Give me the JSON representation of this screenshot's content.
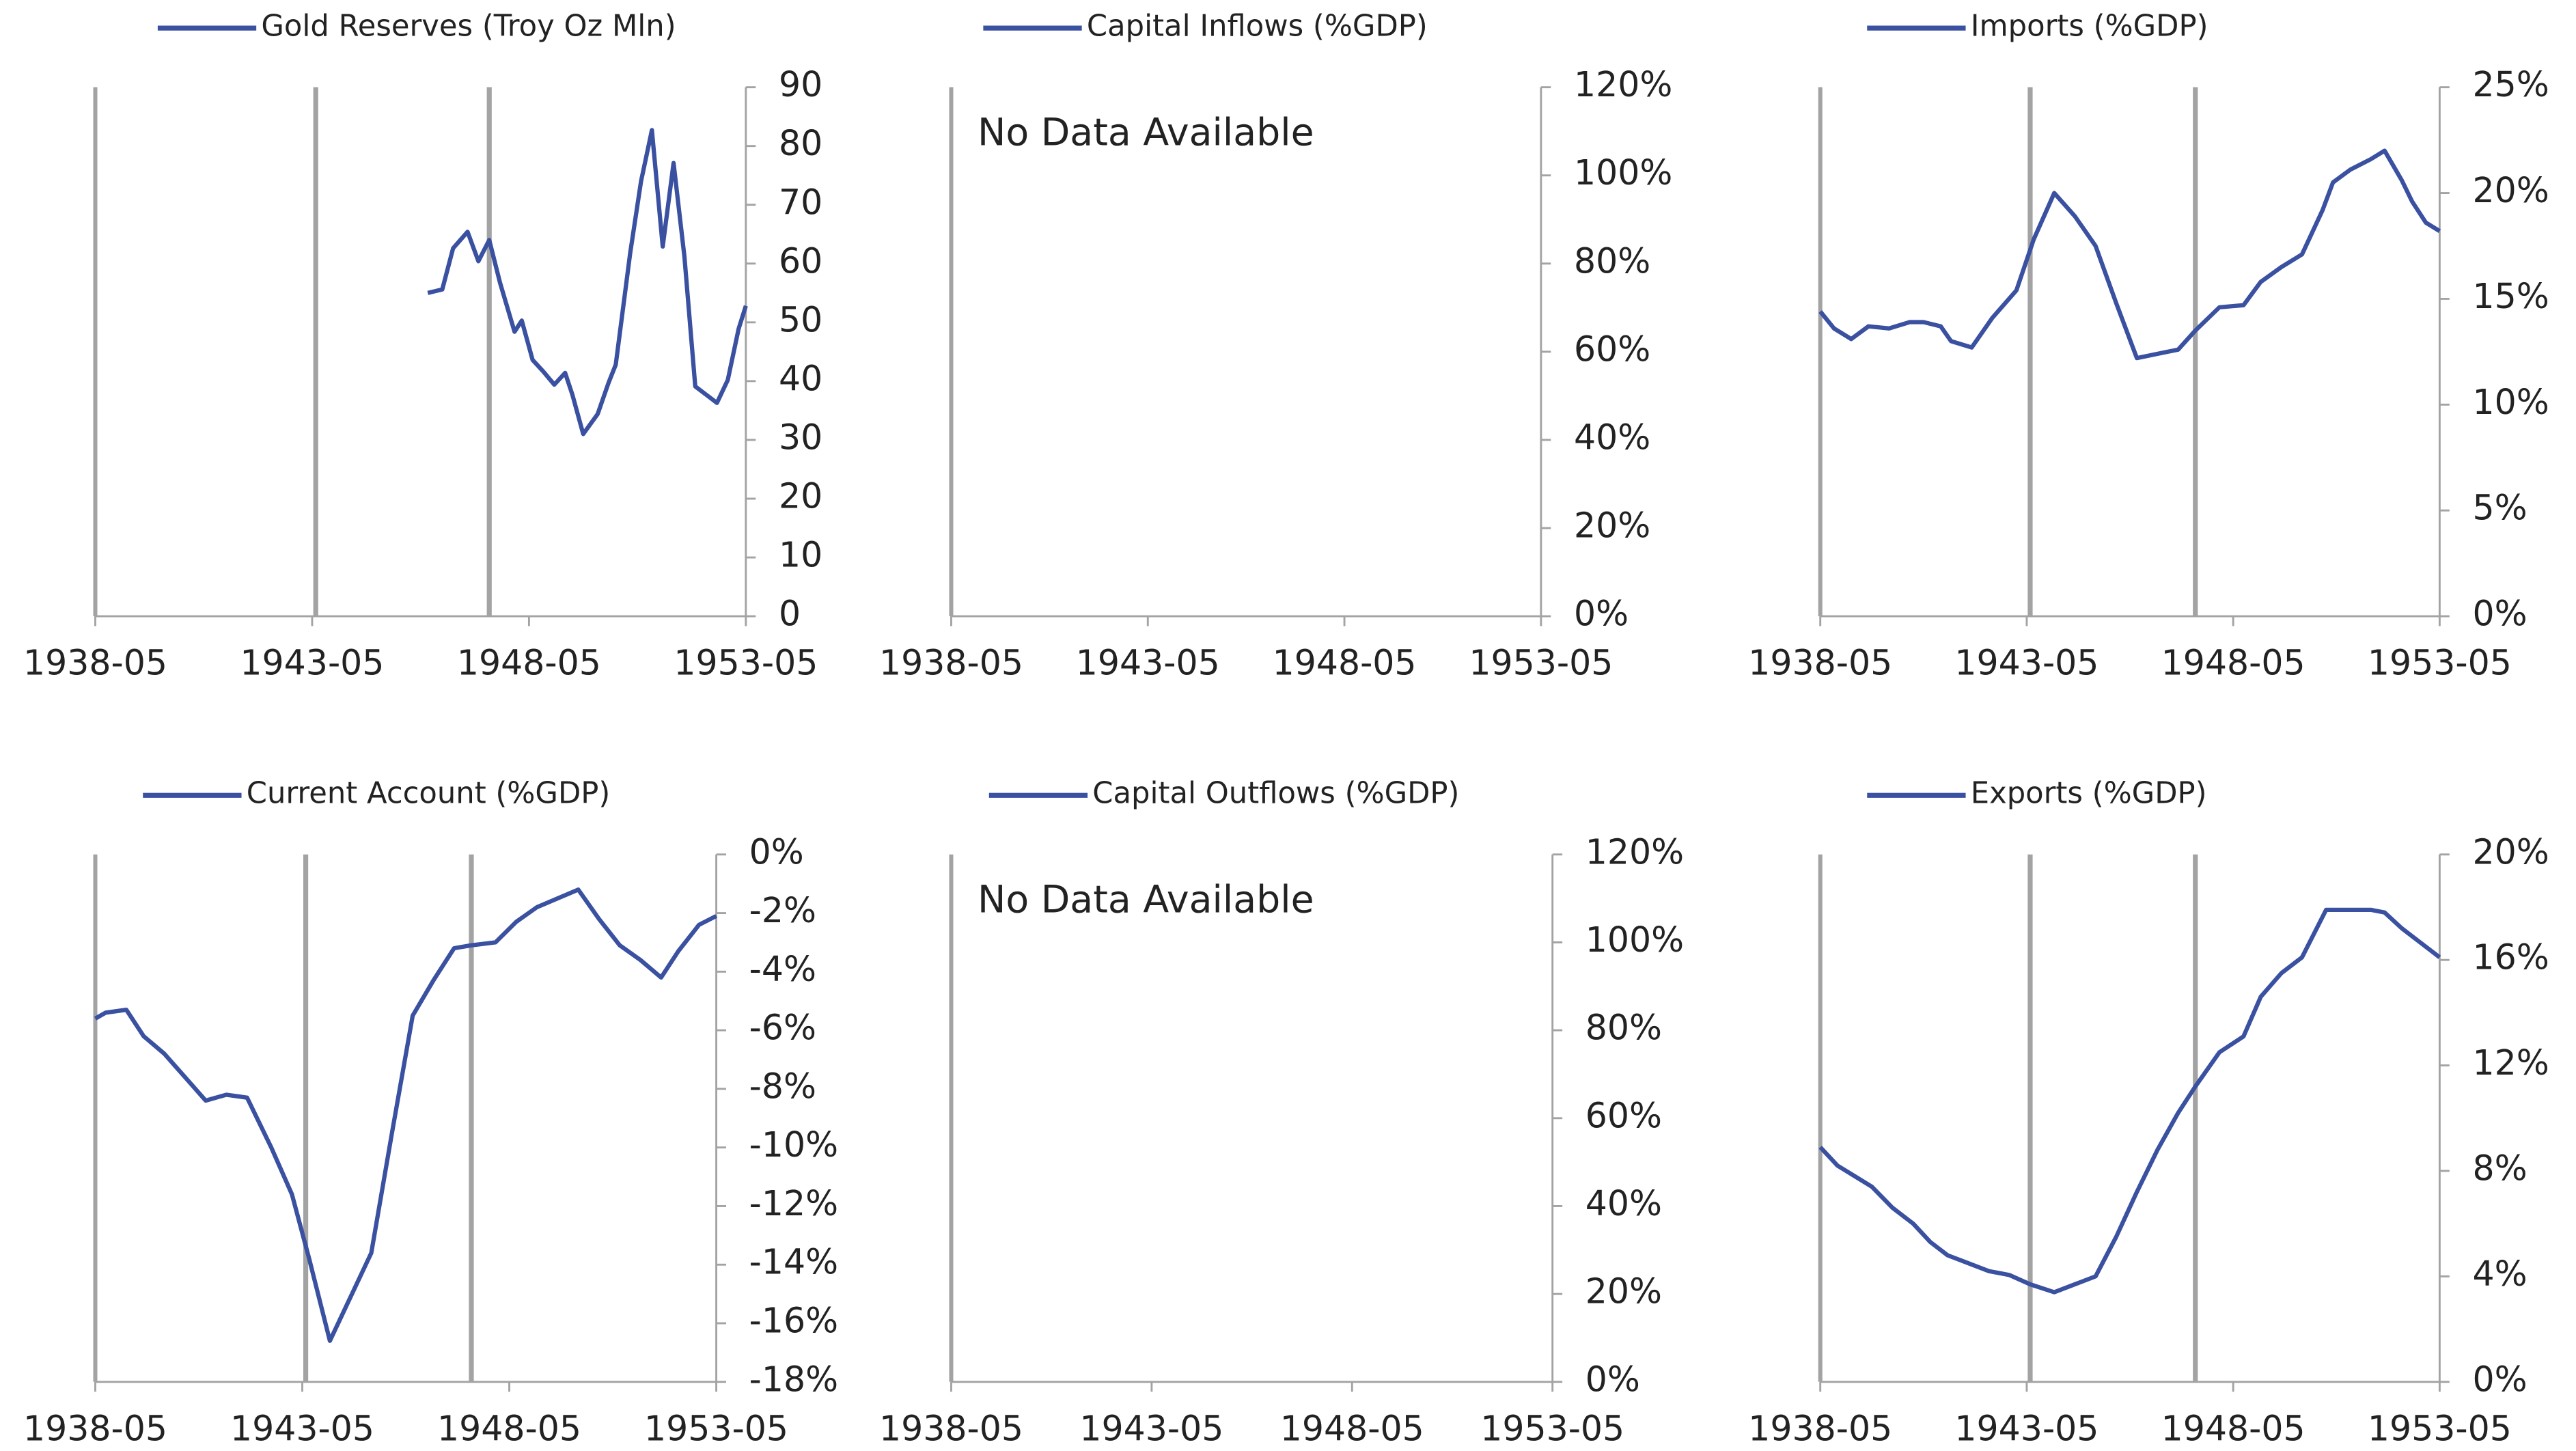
{
  "chart_data": [
    {
      "type": "line",
      "x": [
        "1946-01",
        "1946-05",
        "1946-08",
        "1946-12",
        "1947-03",
        "1947-06",
        "1947-09",
        "1948-01",
        "1948-03",
        "1948-06",
        "1948-09",
        "1948-12",
        "1949-03",
        "1949-05",
        "1949-08",
        "1949-12",
        "1950-03",
        "1950-05",
        "1950-09",
        "1950-12",
        "1951-03",
        "1951-06",
        "1951-09",
        "1951-12",
        "1952-03",
        "1952-06",
        "1952-09",
        "1952-12",
        "1953-03",
        "1953-05"
      ],
      "series": [
        {
          "name": "Gold Reserves (Troy Oz Mln)",
          "color": "#3a50a0",
          "values": [
            55,
            55.6,
            62.6,
            65.4,
            60.4,
            64,
            56.7,
            48.4,
            50.3,
            43.6,
            41.6,
            39.4,
            41.4,
            37.7,
            31,
            34.4,
            39.7,
            42.8,
            61.8,
            74,
            82.7,
            62.9,
            77.1,
            61.2,
            39.1,
            37.7,
            36.3,
            40.2,
            48.9,
            52.8
          ]
        }
      ],
      "xlim": [
        "1938-05",
        "1953-05"
      ],
      "xticks": [
        "1938-05",
        "1943-05",
        "1948-05",
        "1953-05"
      ],
      "ylim": [
        0,
        90
      ],
      "yticks": [
        0,
        10,
        20,
        30,
        40,
        50,
        60,
        70,
        80,
        90
      ],
      "markers": [
        "1943-06",
        "1947-06"
      ]
    },
    {
      "type": "line",
      "x": [],
      "series": [
        {
          "name": "Capital Inflows (%GDP)",
          "color": "#3a50a0",
          "values": []
        }
      ],
      "annotation": "No Data Available",
      "xlim": [
        "1938-05",
        "1953-05"
      ],
      "xticks": [
        "1938-05",
        "1943-05",
        "1948-05",
        "1953-05"
      ],
      "ylim": [
        0,
        120
      ],
      "yticks": [
        {
          "value": 0,
          "label": "0%"
        },
        {
          "value": 20,
          "label": "20%"
        },
        {
          "value": 40,
          "label": "40%"
        },
        {
          "value": 60,
          "label": "60%"
        },
        {
          "value": 80,
          "label": "80%"
        },
        {
          "value": 100,
          "label": "100%"
        },
        {
          "value": 120,
          "label": "120%"
        }
      ],
      "markers": []
    },
    {
      "type": "line",
      "x": [
        "1938-05",
        "1938-09",
        "1939-02",
        "1939-07",
        "1940-01",
        "1940-07",
        "1940-11",
        "1941-04",
        "1941-07",
        "1942-01",
        "1942-07",
        "1943-02",
        "1943-07",
        "1944-01",
        "1944-07",
        "1945-01",
        "1945-07",
        "1946-01",
        "1946-07",
        "1947-01",
        "1947-06",
        "1948-01",
        "1948-08",
        "1949-01",
        "1949-07",
        "1950-01",
        "1950-07",
        "1950-10",
        "1951-03",
        "1951-09",
        "1952-01",
        "1952-06",
        "1952-09",
        "1953-01",
        "1953-05"
      ],
      "series": [
        {
          "name": "Imports (%GDP)",
          "color": "#3a50a0",
          "values": [
            14.4,
            13.6,
            13.1,
            13.7,
            13.6,
            13.9,
            13.9,
            13.7,
            13,
            12.7,
            14.1,
            15.4,
            17.8,
            20,
            18.9,
            17.5,
            14.8,
            12.2,
            12.4,
            12.6,
            13.5,
            14.6,
            14.7,
            15.8,
            16.5,
            17.1,
            19.2,
            20.5,
            21.1,
            21.6,
            22,
            20.6,
            19.6,
            18.6,
            18.2
          ]
        }
      ],
      "xlim": [
        "1938-05",
        "1953-05"
      ],
      "xticks": [
        "1938-05",
        "1943-05",
        "1948-05",
        "1953-05"
      ],
      "ylim": [
        0,
        25
      ],
      "yticks": [
        {
          "value": 0,
          "label": "0%"
        },
        {
          "value": 5,
          "label": "5%"
        },
        {
          "value": 10,
          "label": "10%"
        },
        {
          "value": 15,
          "label": "15%"
        },
        {
          "value": 20,
          "label": "20%"
        },
        {
          "value": 25,
          "label": "25%"
        }
      ],
      "markers": [
        "1943-06",
        "1947-06"
      ]
    },
    {
      "type": "line",
      "x": [
        "1938-05",
        "1938-08",
        "1939-02",
        "1939-07",
        "1940-01",
        "1940-07",
        "1941-01",
        "1941-04",
        "1941-07",
        "1942-01",
        "1942-08",
        "1943-02",
        "1943-07",
        "1944-01",
        "1944-07",
        "1945-01",
        "1945-07",
        "1946-01",
        "1946-07",
        "1947-01",
        "1947-06",
        "1948-01",
        "1948-07",
        "1949-01",
        "1949-07",
        "1950-01",
        "1950-07",
        "1951-01",
        "1951-07",
        "1952-01",
        "1952-06",
        "1952-12",
        "1953-05"
      ],
      "series": [
        {
          "name": "Current Account (%GDP)",
          "color": "#3a50a0",
          "values": [
            -5.6,
            -5.4,
            -5.3,
            -6.2,
            -6.8,
            -7.6,
            -8.4,
            -8.3,
            -8.2,
            -8.3,
            -10,
            -11.6,
            -13.8,
            -16.6,
            -15.1,
            -13.6,
            -9.5,
            -5.5,
            -4.3,
            -3.2,
            -3.1,
            -3,
            -2.3,
            -1.8,
            -1.5,
            -1.2,
            -2.2,
            -3.1,
            -3.6,
            -4.2,
            -3.3,
            -2.4,
            -2.1
          ]
        }
      ],
      "xlim": [
        "1938-05",
        "1953-05"
      ],
      "xticks": [
        "1938-05",
        "1943-05",
        "1948-05",
        "1953-05"
      ],
      "ylim": [
        -18,
        0
      ],
      "yticks": [
        {
          "value": -18,
          "label": "-18%"
        },
        {
          "value": -16,
          "label": "-16%"
        },
        {
          "value": -14,
          "label": "-14%"
        },
        {
          "value": -12,
          "label": "-12%"
        },
        {
          "value": -10,
          "label": "-10%"
        },
        {
          "value": -8,
          "label": "-8%"
        },
        {
          "value": -6,
          "label": "-6%"
        },
        {
          "value": -4,
          "label": "-4%"
        },
        {
          "value": -2,
          "label": "-2%"
        },
        {
          "value": 0,
          "label": "0%"
        }
      ],
      "markers": [
        "1943-06",
        "1947-06"
      ]
    },
    {
      "type": "line",
      "x": [],
      "series": [
        {
          "name": "Capital Outflows (%GDP)",
          "color": "#3a50a0",
          "values": []
        }
      ],
      "annotation": "No Data Available",
      "xlim": [
        "1938-05",
        "1953-05"
      ],
      "xticks": [
        "1938-05",
        "1943-05",
        "1948-05",
        "1953-05"
      ],
      "ylim": [
        0,
        120
      ],
      "yticks": [
        {
          "value": 0,
          "label": "0%"
        },
        {
          "value": 20,
          "label": "20%"
        },
        {
          "value": 40,
          "label": "40%"
        },
        {
          "value": 60,
          "label": "60%"
        },
        {
          "value": 80,
          "label": "80%"
        },
        {
          "value": 100,
          "label": "100%"
        },
        {
          "value": 120,
          "label": "120%"
        }
      ],
      "markers": []
    },
    {
      "type": "line",
      "x": [
        "1938-05",
        "1938-10",
        "1939-03",
        "1939-08",
        "1940-02",
        "1940-08",
        "1941-01",
        "1941-06",
        "1941-12",
        "1942-06",
        "1942-12",
        "1943-06",
        "1944-01",
        "1944-07",
        "1945-01",
        "1945-07",
        "1946-01",
        "1946-07",
        "1947-01",
        "1947-06",
        "1948-01",
        "1948-08",
        "1949-01",
        "1949-07",
        "1950-01",
        "1950-08",
        "1951-03",
        "1951-09",
        "1952-01",
        "1952-06",
        "1952-11",
        "1953-05"
      ],
      "series": [
        {
          "name": "Exports (%GDP)",
          "color": "#3a50a0",
          "values": [
            8.9,
            8.2,
            7.8,
            7.4,
            6.6,
            6,
            5.3,
            4.8,
            4.5,
            4.2,
            4.05,
            3.7,
            3.4,
            3.7,
            4,
            5.5,
            7.2,
            8.8,
            10.2,
            11.2,
            12.5,
            13.1,
            14.6,
            15.5,
            16.1,
            17.9,
            17.9,
            17.9,
            17.8,
            17.2,
            16.7,
            16.1
          ]
        }
      ],
      "xlim": [
        "1938-05",
        "1953-05"
      ],
      "xticks": [
        "1938-05",
        "1943-05",
        "1948-05",
        "1953-05"
      ],
      "ylim": [
        0,
        20
      ],
      "yticks": [
        {
          "value": 0,
          "label": "0%"
        },
        {
          "value": 4,
          "label": "4%"
        },
        {
          "value": 8,
          "label": "8%"
        },
        {
          "value": 12,
          "label": "12%"
        },
        {
          "value": 16,
          "label": "16%"
        },
        {
          "value": 20,
          "label": "20%"
        }
      ],
      "markers": [
        "1943-06",
        "1947-06"
      ]
    }
  ]
}
